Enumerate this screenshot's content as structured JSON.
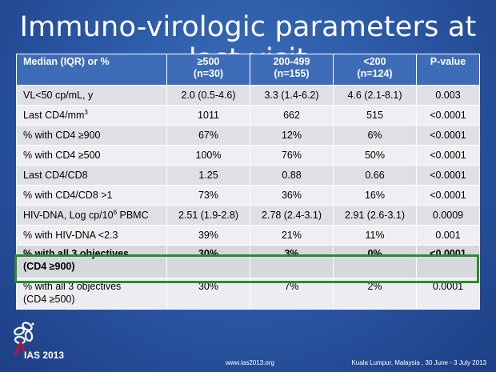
{
  "slide": {
    "title": "Immuno-virologic parameters at last visit"
  },
  "table": {
    "headers": [
      {
        "line1": "Median (IQR) or %",
        "line2": ""
      },
      {
        "line1": "≥500",
        "line2": "(n=30)"
      },
      {
        "line1": "200-499",
        "line2": "(n=155)"
      },
      {
        "line1": "<200",
        "line2": "(n=124)"
      },
      {
        "line1": "P-value",
        "line2": ""
      }
    ],
    "rows": [
      {
        "label": "VL<50 cp/mL, y",
        "sup": "",
        "label_after": "",
        "c1": "2.0 (0.5-4.6)",
        "c2": "3.3 (1.4-6.2)",
        "c3": "4.6 (2.1-8.1)",
        "p": "0.003"
      },
      {
        "label": "Last CD4/mm",
        "sup": "3",
        "label_after": "",
        "c1": "1011",
        "c2": "662",
        "c3": "515",
        "p": "<0.0001"
      },
      {
        "label": "% with CD4 ≥900",
        "sup": "",
        "label_after": "",
        "c1": "67%",
        "c2": "12%",
        "c3": "6%",
        "p": "<0.0001"
      },
      {
        "label": "% with CD4 ≥500",
        "sup": "",
        "label_after": "",
        "c1": "100%",
        "c2": "76%",
        "c3": "50%",
        "p": "<0.0001"
      },
      {
        "label": "Last CD4/CD8",
        "sup": "",
        "label_after": "",
        "c1": "1.25",
        "c2": "0.88",
        "c3": "0.66",
        "p": "<0.0001"
      },
      {
        "label": "% with CD4/CD8 >1",
        "sup": "",
        "label_after": "",
        "c1": "73%",
        "c2": "36%",
        "c3": "16%",
        "p": "<0.0001"
      },
      {
        "label": "HIV-DNA, Log cp/10",
        "sup": "6",
        "label_after": " PBMC",
        "c1": "2.51 (1.9-2.8)",
        "c2": "2.78 (2.4-3.1)",
        "c3": "2.91 (2.6-3.1)",
        "p": "0.0009"
      },
      {
        "label": "% with HIV-DNA <2.3",
        "sup": "",
        "label_after": "",
        "c1": "39%",
        "c2": "21%",
        "c3": "11%",
        "p": "0.001"
      }
    ],
    "objective_row": {
      "line1": "% with all 3 objectives",
      "line2": "(CD4 ≥900)",
      "c1": "30%",
      "c2": "3%",
      "c3": "0%",
      "p": "<0.0001"
    },
    "last_row": {
      "line1": "% with all 3 objectives",
      "line2": "(CD4 ≥500)",
      "c1": "30%",
      "c2": "7%",
      "c3": "2%",
      "p": "0.0001"
    }
  },
  "footer": {
    "logo_text": "IAS 2013",
    "url": "www.ias2013.org",
    "location": "Kuala Lumpur, Malaysia , 30 June - 3 July 2013"
  },
  "colors": {
    "background": "#2c5aa7",
    "header": "#3d6cb8",
    "highlight_border": "#2d8a2d",
    "logo_red": "#c8102e"
  }
}
